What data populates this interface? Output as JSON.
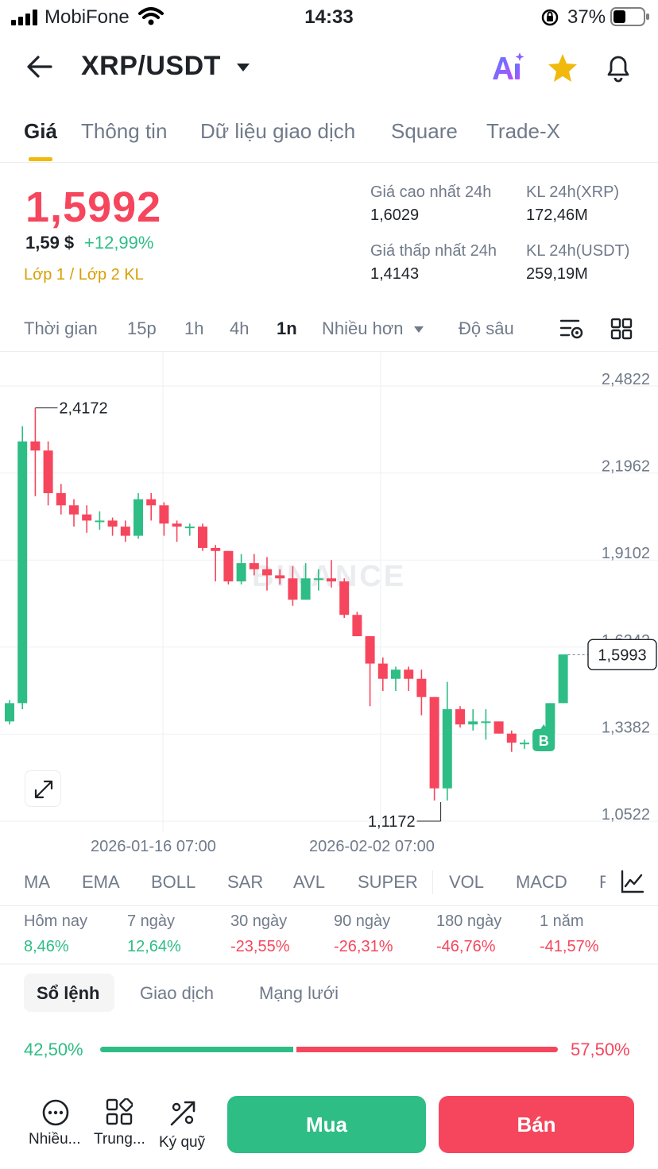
{
  "status_bar": {
    "carrier": "MobiFone",
    "time": "14:33",
    "battery": "37%"
  },
  "header": {
    "pair": "XRP/USDT"
  },
  "tabs": [
    {
      "label": "Giá"
    },
    {
      "label": "Thông tin"
    },
    {
      "label": "Dữ liệu giao dịch"
    },
    {
      "label": "Square"
    },
    {
      "label": "Trade-X"
    }
  ],
  "price": {
    "last": "1,5992",
    "usd": "1,59 $",
    "change": "+12,99%",
    "tags": "Lớp 1 / Lớp 2  KL",
    "high_label": "Giá cao nhất 24h",
    "high_value": "1,6029",
    "low_label": "Giá thấp nhất 24h",
    "low_value": "1,4143",
    "vol_base_label": "KL 24h(XRP)",
    "vol_base_value": "172,46M",
    "vol_quote_label": "KL 24h(USDT)",
    "vol_quote_value": "259,19M"
  },
  "intervals": {
    "time": "Thời gian",
    "i15": "15p",
    "i1h": "1h",
    "i4h": "4h",
    "i1d": "1n",
    "more": "Nhiều hơn",
    "depth": "Độ sâu"
  },
  "chart_data": {
    "type": "candlestick",
    "y_ticks": [
      "2,4822",
      "2,1962",
      "1,9102",
      "1,6242",
      "1,3382",
      "1,0522"
    ],
    "y_tick_values": [
      2.4822,
      2.1962,
      1.9102,
      1.6242,
      1.3382,
      1.0522
    ],
    "x_labels": [
      "2026-01-16 07:00",
      "2026-02-02 07:00"
    ],
    "max_label": "2,4172",
    "min_label": "1,1172",
    "last_price_label": "1,5993",
    "last_price": 1.5993,
    "marker": "B",
    "watermark": "BINANCE",
    "candles": [
      [
        1.38,
        1.44,
        1.37,
        1.45
      ],
      [
        1.44,
        2.3,
        1.42,
        2.35
      ],
      [
        2.3,
        2.27,
        2.12,
        2.41
      ],
      [
        2.27,
        2.13,
        2.09,
        2.3
      ],
      [
        2.13,
        2.09,
        2.06,
        2.16
      ],
      [
        2.09,
        2.06,
        2.02,
        2.11
      ],
      [
        2.06,
        2.04,
        2.0,
        2.09
      ],
      [
        2.04,
        2.04,
        2.01,
        2.07
      ],
      [
        2.04,
        2.02,
        1.99,
        2.05
      ],
      [
        2.02,
        1.99,
        1.97,
        2.04
      ],
      [
        1.99,
        2.11,
        1.98,
        2.13
      ],
      [
        2.11,
        2.09,
        2.04,
        2.13
      ],
      [
        2.09,
        2.03,
        1.99,
        2.1
      ],
      [
        2.03,
        2.02,
        1.97,
        2.04
      ],
      [
        2.02,
        2.02,
        1.99,
        2.03
      ],
      [
        2.02,
        1.95,
        1.94,
        2.03
      ],
      [
        1.95,
        1.94,
        1.84,
        1.96
      ],
      [
        1.94,
        1.84,
        1.83,
        1.94
      ],
      [
        1.84,
        1.9,
        1.83,
        1.93
      ],
      [
        1.9,
        1.88,
        1.86,
        1.93
      ],
      [
        1.88,
        1.86,
        1.81,
        1.92
      ],
      [
        1.86,
        1.85,
        1.83,
        1.88
      ],
      [
        1.85,
        1.78,
        1.76,
        1.89
      ],
      [
        1.78,
        1.85,
        1.78,
        1.9
      ],
      [
        1.85,
        1.85,
        1.81,
        1.88
      ],
      [
        1.85,
        1.84,
        1.82,
        1.91
      ],
      [
        1.84,
        1.73,
        1.72,
        1.85
      ],
      [
        1.73,
        1.66,
        1.66,
        1.74
      ],
      [
        1.66,
        1.57,
        1.43,
        1.66
      ],
      [
        1.57,
        1.52,
        1.48,
        1.59
      ],
      [
        1.52,
        1.55,
        1.48,
        1.56
      ],
      [
        1.55,
        1.52,
        1.48,
        1.56
      ],
      [
        1.52,
        1.46,
        1.4,
        1.55
      ],
      [
        1.46,
        1.16,
        1.12,
        1.46
      ],
      [
        1.16,
        1.42,
        1.12,
        1.51
      ],
      [
        1.42,
        1.37,
        1.36,
        1.43
      ],
      [
        1.37,
        1.38,
        1.35,
        1.42
      ],
      [
        1.38,
        1.38,
        1.32,
        1.42
      ],
      [
        1.38,
        1.34,
        1.34,
        1.38
      ],
      [
        1.34,
        1.31,
        1.28,
        1.35
      ],
      [
        1.31,
        1.31,
        1.29,
        1.32
      ],
      [
        1.31,
        1.34,
        1.29,
        1.35
      ],
      [
        1.34,
        1.44,
        1.34,
        1.44
      ],
      [
        1.44,
        1.6,
        1.44,
        1.6
      ]
    ]
  },
  "indicators": [
    "MA",
    "EMA",
    "BOLL",
    "SAR",
    "AVL",
    "SUPER",
    "VOL",
    "MACD",
    "R"
  ],
  "performance": [
    {
      "label": "Hôm nay",
      "value": "8,46%",
      "dir": "up"
    },
    {
      "label": "7 ngày",
      "value": "12,64%",
      "dir": "up"
    },
    {
      "label": "30 ngày",
      "value": "-23,55%",
      "dir": "down"
    },
    {
      "label": "90 ngày",
      "value": "-26,31%",
      "dir": "down"
    },
    {
      "label": "180 ngày",
      "value": "-46,76%",
      "dir": "down"
    },
    {
      "label": "1 năm",
      "value": "-41,57%",
      "dir": "down"
    }
  ],
  "orderbook": {
    "tabs": [
      "Sổ lệnh",
      "Giao dịch",
      "Mạng lưới"
    ],
    "buy_ratio": "42,50%",
    "sell_ratio": "57,50%",
    "buy_fraction": 0.425
  },
  "bottom": {
    "more": "Nhiều...",
    "center": "Trung...",
    "margin": "Ký quỹ",
    "buy": "Mua",
    "sell": "Bán"
  },
  "colors": {
    "up": "#2ebd85",
    "down": "#f6465d",
    "accent": "#f0b90b"
  }
}
